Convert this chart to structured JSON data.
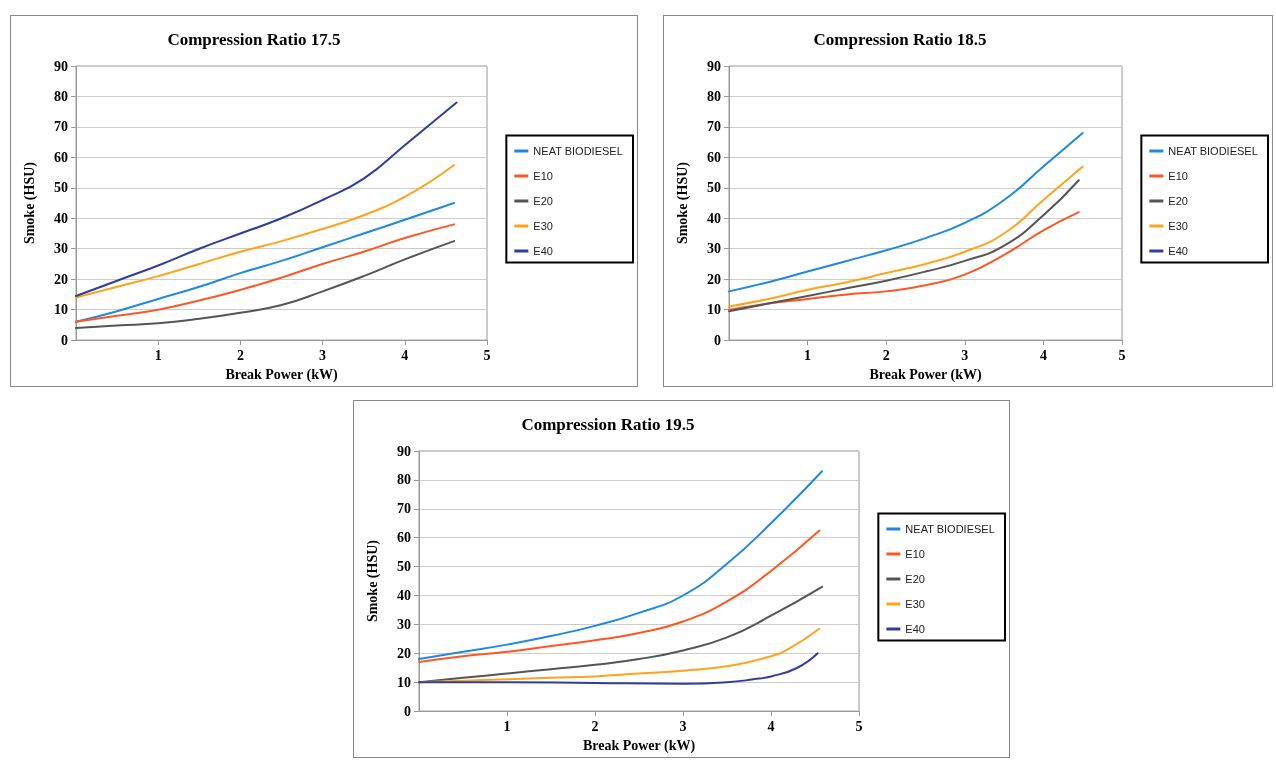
{
  "chart_data": [
    {
      "type": "line",
      "title": "Compression Ratio 17.5",
      "xlabel": "Break Power (kW)",
      "ylabel": "Smoke (HSU)",
      "xlim": [
        0,
        5
      ],
      "xticks": [
        1,
        2,
        3,
        4,
        5
      ],
      "ylim": [
        0,
        90
      ],
      "yticks": [
        0,
        10,
        20,
        30,
        40,
        50,
        60,
        70,
        80,
        90
      ],
      "grid": "y",
      "legend": "right",
      "marker": "none",
      "line_style": "solid",
      "series": [
        {
          "name": "NEAT BIODIESEL",
          "color": "#1e88e5",
          "x": [
            0,
            0.5,
            1,
            1.5,
            2,
            2.5,
            3,
            3.5,
            4,
            4.6
          ],
          "values": [
            6,
            9.5,
            13.5,
            17.5,
            22,
            26,
            30.5,
            35,
            39.5,
            45
          ]
        },
        {
          "name": "E10",
          "color": "#ff5722",
          "x": [
            0,
            0.5,
            1,
            1.5,
            2,
            2.5,
            3,
            3.5,
            4,
            4.6
          ],
          "values": [
            6,
            8,
            10,
            13,
            16.5,
            20.5,
            25,
            29,
            33.5,
            38
          ]
        },
        {
          "name": "E20",
          "color": "#555555",
          "x": [
            0,
            0.5,
            1,
            1.5,
            2,
            2.5,
            3,
            3.5,
            4,
            4.6
          ],
          "values": [
            4,
            4.8,
            5.5,
            7,
            9,
            11.5,
            16,
            21,
            26.5,
            32.5
          ]
        },
        {
          "name": "E30",
          "color": "#ffa31a",
          "x": [
            0,
            0.5,
            1,
            1.5,
            2,
            2.5,
            3,
            3.5,
            4,
            4.6
          ],
          "values": [
            14,
            17.5,
            21,
            25,
            29,
            32.5,
            36.5,
            41,
            47,
            57.5
          ]
        },
        {
          "name": "E40",
          "color": "#2e3d9e",
          "x": [
            0,
            0.5,
            1,
            1.5,
            2,
            2.5,
            3,
            3.5,
            4,
            4.63
          ],
          "values": [
            14.5,
            19.5,
            24.5,
            30,
            35,
            40,
            46,
            53,
            64,
            78
          ]
        }
      ]
    },
    {
      "type": "line",
      "title": "Compression Ratio 18.5",
      "xlabel": "Break Power (kW)",
      "ylabel": "Smoke (HSU)",
      "xlim": [
        0,
        5
      ],
      "xticks": [
        1,
        2,
        3,
        4,
        5
      ],
      "ylim": [
        0,
        90
      ],
      "yticks": [
        0,
        10,
        20,
        30,
        40,
        50,
        60,
        70,
        80,
        90
      ],
      "grid": "y",
      "legend": "right",
      "marker": "none",
      "line_style": "solid",
      "series": [
        {
          "name": "NEAT BIODIESEL",
          "color": "#1e88e5",
          "x": [
            0,
            0.5,
            1,
            1.5,
            2,
            2.5,
            3,
            3.5,
            4,
            4.5
          ],
          "values": [
            16,
            19,
            22.5,
            26,
            29.5,
            33.5,
            38.5,
            46,
            57,
            68
          ]
        },
        {
          "name": "E10",
          "color": "#ff5722",
          "x": [
            0,
            0.5,
            1,
            1.5,
            2,
            2.5,
            3,
            3.5,
            4,
            4.45
          ],
          "values": [
            10,
            12,
            13.5,
            15,
            16,
            18,
            21.5,
            28,
            36,
            42
          ]
        },
        {
          "name": "E20",
          "color": "#555555",
          "x": [
            0,
            0.5,
            1,
            1.5,
            2,
            2.5,
            3,
            3.5,
            4,
            4.45
          ],
          "values": [
            9.5,
            12,
            14.5,
            17,
            19.5,
            22.5,
            26,
            31,
            41,
            52.5
          ]
        },
        {
          "name": "E30",
          "color": "#ffa31a",
          "x": [
            0,
            0.5,
            1,
            1.5,
            2,
            2.5,
            3,
            3.5,
            4,
            4.5
          ],
          "values": [
            11,
            13.5,
            16.5,
            19,
            22,
            25,
            29,
            35,
            46,
            57
          ]
        },
        {
          "name": "E40",
          "color": "#2e3d9e"
        }
      ]
    },
    {
      "type": "line",
      "title": "Compression Ratio 19.5",
      "xlabel": "Break Power (kW)",
      "ylabel": "Smoke (HSU)",
      "xlim": [
        0,
        5
      ],
      "xticks": [
        1,
        2,
        3,
        4,
        5
      ],
      "ylim": [
        0,
        90
      ],
      "yticks": [
        0,
        10,
        20,
        30,
        40,
        50,
        60,
        70,
        80,
        90
      ],
      "grid": "y",
      "legend": "right",
      "marker": "none",
      "line_style": "solid",
      "series": [
        {
          "name": "NEAT BIODIESEL",
          "color": "#1e88e5",
          "x": [
            0,
            0.5,
            1,
            1.5,
            2,
            2.5,
            3,
            3.5,
            4,
            4.58
          ],
          "values": [
            18,
            20.5,
            23,
            26,
            29.5,
            34,
            40,
            51,
            65,
            83
          ]
        },
        {
          "name": "E10",
          "color": "#ff5722",
          "x": [
            0,
            0.5,
            1,
            1.5,
            2,
            2.5,
            3,
            3.5,
            4,
            4.55
          ],
          "values": [
            17,
            19,
            20.5,
            22.5,
            24.5,
            27,
            31,
            38,
            48.5,
            62.5
          ]
        },
        {
          "name": "E20",
          "color": "#555555",
          "x": [
            0,
            0.5,
            1,
            1.5,
            2,
            2.5,
            3,
            3.5,
            4,
            4.58
          ],
          "values": [
            10,
            11.5,
            13,
            14.5,
            16,
            18,
            21,
            25.5,
            33,
            43
          ]
        },
        {
          "name": "E30",
          "color": "#ffa31a",
          "x": [
            0,
            0.5,
            1,
            1.5,
            2,
            2.5,
            3,
            3.5,
            4,
            4.2,
            4.55
          ],
          "values": [
            10,
            10.5,
            11,
            11.5,
            12,
            13,
            14,
            15.5,
            19,
            21.5,
            28.5
          ]
        },
        {
          "name": "E40",
          "color": "#2e3d9e",
          "x": [
            0,
            1,
            2,
            3,
            3.5,
            3.8,
            4,
            4.3,
            4.53
          ],
          "values": [
            10,
            10,
            9.7,
            9.5,
            10,
            11,
            12,
            15,
            20
          ]
        }
      ]
    }
  ]
}
